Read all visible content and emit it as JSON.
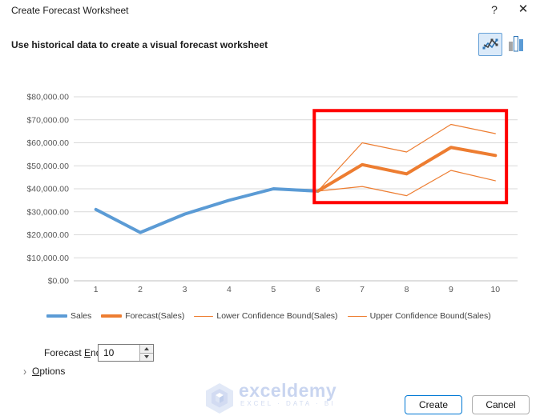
{
  "window": {
    "title": "Create Forecast Worksheet",
    "help_glyph": "?",
    "close_glyph": "✕"
  },
  "header": {
    "subtitle": "Use historical data to create a visual forecast worksheet"
  },
  "chart_type_picker": {
    "line_selected": true,
    "bar_selected": false
  },
  "chart_data": {
    "type": "line",
    "title": "",
    "xlabel": "",
    "ylabel": "",
    "grid": true,
    "legend_position": "bottom",
    "ylim": [
      0,
      80000
    ],
    "y_step": 10000,
    "x": [
      1,
      2,
      3,
      4,
      5,
      6,
      7,
      8,
      9,
      10
    ],
    "x_tick_labels": [
      "1",
      "2",
      "3",
      "4",
      "5",
      "6",
      "7",
      "8",
      "9",
      "10"
    ],
    "y_tick_labels": [
      "$0.00",
      "$10,000.00",
      "$20,000.00",
      "$30,000.00",
      "$40,000.00",
      "$50,000.00",
      "$60,000.00",
      "$70,000.00",
      "$80,000.00"
    ],
    "series": [
      {
        "name": "Sales",
        "x": [
          1,
          2,
          3,
          4,
          5,
          6
        ],
        "values": [
          31000,
          21000,
          29000,
          35000,
          40000,
          39000
        ],
        "color": "#5B9BD5",
        "width": 4
      },
      {
        "name": "Forecast(Sales)",
        "x": [
          6,
          7,
          8,
          9,
          10
        ],
        "values": [
          39000,
          50500,
          46500,
          58000,
          54500
        ],
        "color": "#ED7D31",
        "width": 4
      },
      {
        "name": "Lower Confidence Bound(Sales)",
        "x": [
          6,
          7,
          8,
          9,
          10
        ],
        "values": [
          39000,
          41000,
          37000,
          48000,
          43500
        ],
        "color": "#ED7D31",
        "width": 1.2
      },
      {
        "name": "Upper Confidence Bound(Sales)",
        "x": [
          6,
          7,
          8,
          9,
          10
        ],
        "values": [
          39000,
          60000,
          56000,
          68000,
          64000
        ],
        "color": "#ED7D31",
        "width": 1.2
      }
    ],
    "annotation_rect": {
      "x_from": 5.92,
      "x_to": 10.25,
      "value_from": 34000,
      "value_to": 74000,
      "color": "#FF0000"
    }
  },
  "forecast_end": {
    "label_prefix": "Forecast ",
    "label_underline": "E",
    "label_suffix": "nd",
    "value": "10"
  },
  "options": {
    "chevron_glyph": "›",
    "label_underline": "O",
    "label_suffix": "ptions"
  },
  "watermark": {
    "brand": "exceldemy",
    "tagline": "EXCEL · DATA · BI"
  },
  "footer": {
    "create_label": "Create",
    "cancel_label": "Cancel"
  },
  "colors": {
    "accent": "#0078D4",
    "sales_line": "#5B9BD5",
    "forecast_line": "#ED7D31",
    "highlight_box": "#FF0000",
    "gridline": "#D9D9D9",
    "axis_line": "#BFBFBF",
    "axis_text": "#595959"
  }
}
